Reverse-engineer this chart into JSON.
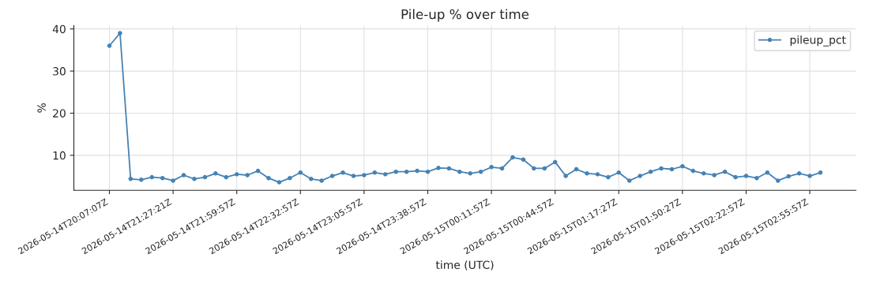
{
  "chart_data": {
    "type": "line",
    "title": "Pile-up % over time",
    "xlabel": "time (UTC)",
    "ylabel": "%",
    "categories": [
      "2026-05-14T20:07:07Z",
      null,
      null,
      null,
      null,
      null,
      "2026-05-14T21:27:21Z",
      null,
      null,
      null,
      null,
      null,
      "2026-05-14T21:59:57Z",
      null,
      null,
      null,
      null,
      null,
      "2026-05-14T22:32:57Z",
      null,
      null,
      null,
      null,
      null,
      "2026-05-14T23:05:57Z",
      null,
      null,
      null,
      null,
      null,
      "2026-05-14T23:38:57Z",
      null,
      null,
      null,
      null,
      null,
      "2026-05-15T00:11:57Z",
      null,
      null,
      null,
      null,
      null,
      "2026-05-15T00:44:57Z",
      null,
      null,
      null,
      null,
      null,
      "2026-05-15T01:17:27Z",
      null,
      null,
      null,
      null,
      null,
      "2026-05-15T01:50:27Z",
      null,
      null,
      null,
      null,
      null,
      "2026-05-15T02:22:57Z",
      null,
      null,
      null,
      null,
      null,
      "2026-05-15T02:55:57Z",
      null
    ],
    "series": [
      {
        "name": "pileup_pct",
        "color": "#4682b4",
        "values": [
          36,
          39,
          4.4,
          4.2,
          4.8,
          4.6,
          4.0,
          5.3,
          4.4,
          4.8,
          5.7,
          4.8,
          5.5,
          5.3,
          6.3,
          4.6,
          3.6,
          4.6,
          5.9,
          4.4,
          4.0,
          5.1,
          5.9,
          5.1,
          5.3,
          5.9,
          5.5,
          6.1,
          6.1,
          6.3,
          6.1,
          7.0,
          6.9,
          6.1,
          5.7,
          6.1,
          7.2,
          6.9,
          9.5,
          9.0,
          6.9,
          6.9,
          8.4,
          5.1,
          6.7,
          5.7,
          5.5,
          4.8,
          5.9,
          4.0,
          5.1,
          6.1,
          6.9,
          6.7,
          7.4,
          6.3,
          5.7,
          5.3,
          6.1,
          4.8,
          5.1,
          4.6,
          5.9,
          4.0,
          5.0,
          5.7,
          5.1,
          5.9
        ]
      }
    ],
    "ylim": [
      1.7,
      40.8
    ],
    "yticks": [
      10,
      20,
      30,
      40
    ],
    "grid": true,
    "legend": "top right",
    "marker": "circle",
    "line_style": "solid"
  }
}
